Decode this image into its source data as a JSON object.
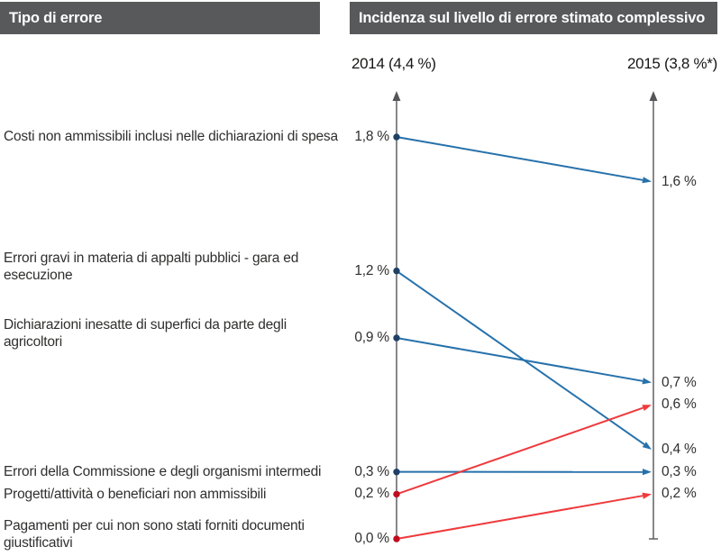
{
  "header": {
    "left_title": "Tipo di errore",
    "right_title": "Incidenza sul livello di errore stimato complessivo",
    "bar_color": "#58595b",
    "bar_text_color": "#ffffff"
  },
  "columns": {
    "left_label": "2014 (4,4 %)",
    "right_label": "2015 (3,8 %*)"
  },
  "chart_data": {
    "type": "line",
    "variant": "slopegraph",
    "title": "Incidenza sul livello di errore stimato complessivo",
    "categories": [
      "2014 (4,4 %)",
      "2015 (3,8 %*)"
    ],
    "unit": "%",
    "ylim": [
      0,
      2.0
    ],
    "grid": false,
    "colors": {
      "axis": "#55565a",
      "blue": {
        "line": "#2671ab",
        "dot": "#1f4066"
      },
      "red": {
        "line": "#ee3a3c",
        "dot": "#c00d1e"
      }
    },
    "series": [
      {
        "label": "Costi non ammissibili inclusi nelle dichiarazioni di spesa",
        "from": 1.8,
        "to": 1.6,
        "from_label": "1,8 %",
        "to_label": "1,6 %",
        "color": "blue"
      },
      {
        "label": "Errori gravi in materia di appalti pubblici - gara ed esecuzione",
        "from": 1.2,
        "to": 0.4,
        "from_label": "1,2 %",
        "to_label": "0,4 %",
        "color": "blue"
      },
      {
        "label": "Dichiarazioni inesatte di superfici da parte degli agricoltori",
        "from": 0.9,
        "to": 0.7,
        "from_label": "0,9 %",
        "to_label": "0,7 %",
        "color": "blue"
      },
      {
        "label": "Errori della Commissione e degli organismi intermedi",
        "from": 0.3,
        "to": 0.3,
        "from_label": "0,3 %",
        "to_label": "0,3 %",
        "color": "blue"
      },
      {
        "label": "Progetti/attività o beneficiari non ammissibili",
        "from": 0.2,
        "to": 0.6,
        "from_label": "0,2 %",
        "to_label": "0,6 %",
        "color": "red"
      },
      {
        "label": "Pagamenti per cui non sono stati forniti documenti giustificativi",
        "from": 0.0,
        "to": 0.2,
        "from_label": "0,0 %",
        "to_label": "0,2 %",
        "color": "red"
      }
    ]
  }
}
